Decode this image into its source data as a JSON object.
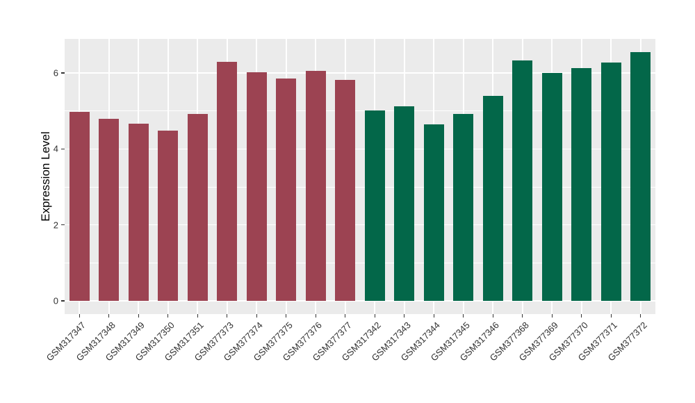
{
  "chart_data": {
    "type": "bar",
    "title": "",
    "ylabel": "Expression Level",
    "xlabel": "",
    "categories": [
      "GSM317347",
      "GSM317348",
      "GSM317349",
      "GSM317350",
      "GSM317351",
      "GSM377373",
      "GSM377374",
      "GSM377375",
      "GSM377376",
      "GSM377377",
      "GSM317342",
      "GSM317343",
      "GSM317344",
      "GSM317345",
      "GSM317346",
      "GSM377368",
      "GSM377369",
      "GSM377370",
      "GSM377371",
      "GSM377372"
    ],
    "values": [
      4.98,
      4.79,
      4.66,
      4.49,
      4.92,
      6.29,
      6.02,
      5.85,
      6.06,
      5.82,
      5.02,
      5.13,
      4.64,
      4.93,
      5.39,
      6.33,
      6.0,
      6.13,
      6.27,
      6.55
    ],
    "bar_groups": [
      "maroon",
      "maroon",
      "maroon",
      "maroon",
      "maroon",
      "maroon",
      "maroon",
      "maroon",
      "maroon",
      "maroon",
      "green",
      "green",
      "green",
      "green",
      "green",
      "green",
      "green",
      "green",
      "green",
      "green"
    ],
    "palette": {
      "maroon": "#9C4352",
      "green": "#036749"
    },
    "yticks": [
      0,
      2,
      4,
      6
    ],
    "ytick_labels": [
      "0",
      "2",
      "4",
      "6"
    ],
    "yticks_minor": [
      1,
      3,
      5
    ],
    "ylim": [
      -0.35,
      6.9
    ],
    "bar_width_ratio": 0.68,
    "grid": true,
    "legend_position": "none",
    "panel_bg": "#EBEBEB",
    "grid_color": "#FFFFFF",
    "tick_color": "#333333"
  }
}
